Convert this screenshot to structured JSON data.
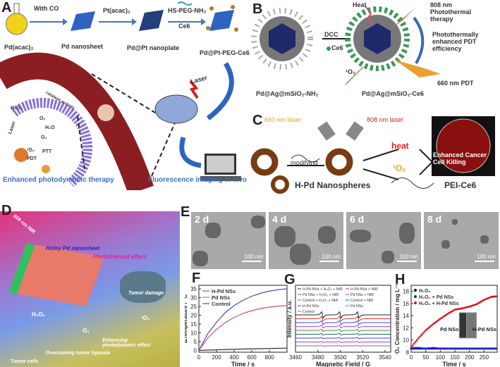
{
  "panels": {
    "A": "A",
    "B": "B",
    "C": "C",
    "D": "D",
    "E": "E",
    "F": "F",
    "G": "G",
    "H": "H"
  },
  "panel_a": {
    "steps": [
      "With CO",
      "Pt(acac)₂",
      "HS-PEG-NH₂",
      "Ce6"
    ],
    "species": [
      "Pd(acac)₂",
      "Pd nanosheet",
      "Pd@Pt nanoplate",
      "Pd@Pt-PEG-Ce6"
    ],
    "laser": "Laser",
    "cell_labels": [
      "Laser",
      "H₂O₂",
      "O₂",
      "O₂",
      "H₂O",
      "¹O₂",
      "PDT",
      "PTT",
      "catalase activity"
    ],
    "caption_left": "Enhanced photodynamic therapy",
    "caption_right": "Fluorescence imaging in vivo",
    "colors": {
      "caption": "#3b6fc2",
      "arrow": "#4a74b8",
      "vessel": "#8b1e22"
    }
  },
  "panel_b": {
    "reagent": "DCC",
    "ce6": "Ce6",
    "left_label": "Pd@Ag@mSiO₂-NH₂",
    "right_label": "Pd@Ag@mSiO₂-Ce6",
    "heat": "Heat",
    "laser808": "808 nm Photothermal therapy",
    "enhanced": "Photothermally enhanced PDT efficiency",
    "singlet": "¹O₂",
    "laser660": "660 nm PDT"
  },
  "panel_c": {
    "laser660": "660 nm laser",
    "laser808": "808 nm laser",
    "modifying": "modifying",
    "heat": "heat",
    "singlet": "¹O₂",
    "result": "Enhanced Cancer Cell Killing",
    "legend_sphere": "H-Pd Nanospheres",
    "legend_polymer": "PEI-Ce6",
    "colors": {
      "laser660": "#e8a21c",
      "laser808": "#e0201c",
      "sphere": "#7a3b12"
    }
  },
  "panel_d": {
    "nir": "808 nm NIR",
    "sheet": "Holey Pd nanosheet",
    "photothermal": "Photothermal effect",
    "damage": "Tumor damage",
    "h2o2": "H₂O₂",
    "o2": "O₂",
    "singlet": "¹O₂",
    "enhancing": "Enhancing photodynamic effect",
    "hypoxia": "Overcoming tumor hypoxia",
    "cells": "Tumor cells"
  },
  "panel_e": {
    "images": [
      {
        "day": "2 d",
        "scale": "100 nm"
      },
      {
        "day": "4 d",
        "scale": "100 nm"
      },
      {
        "day": "6 d",
        "scale": "100 nm"
      },
      {
        "day": "8 d",
        "scale": "100 nm"
      }
    ]
  },
  "chart_data": [
    {
      "panel": "F",
      "type": "line",
      "xlabel": "Time / s",
      "ylabel": "ΔTemperature / °C",
      "xlim": [
        0,
        1000
      ],
      "ylim": [
        -1,
        37
      ],
      "xticks": [
        0,
        200,
        400,
        600,
        800
      ],
      "yticks": [
        0,
        5,
        10,
        15,
        20,
        25,
        30,
        35
      ],
      "legend": "top-left",
      "x": [
        0,
        100,
        200,
        300,
        400,
        500,
        600,
        700,
        800,
        900,
        1000
      ],
      "series": [
        {
          "name": "H-Pd NSs",
          "color": "#4a4ac8",
          "values": [
            0,
            9.5,
            16,
            21.5,
            25.5,
            28.5,
            30.8,
            32.5,
            33.7,
            34.5,
            35
          ]
        },
        {
          "name": "Pd NSs",
          "color": "#d0506a",
          "values": [
            0,
            7,
            12,
            15.8,
            18.8,
            21,
            22.6,
            23.8,
            24.6,
            25.2,
            25.5
          ]
        },
        {
          "name": "Control",
          "color": "#333333",
          "values": [
            0,
            0.2,
            0.35,
            0.5,
            0.65,
            0.8,
            0.9,
            1.0,
            1.1,
            1.2,
            1.3
          ]
        }
      ]
    },
    {
      "panel": "G",
      "type": "line",
      "xlabel": "Magnetic Field / G",
      "ylabel": "Intensity / a.u.",
      "xlim": [
        3460,
        3545
      ],
      "xticks": [
        3460,
        3480,
        3500,
        3520,
        3540
      ],
      "legend": "top",
      "peaks": [
        3484,
        3500,
        3516
      ],
      "series": [
        {
          "name": "H-Pd NSs + H₂O₂ + NIR",
          "color": "#222222",
          "amplitude": 1.0
        },
        {
          "name": "H-Pd NSs + NIR",
          "color": "#e03030",
          "amplitude": 0.7
        },
        {
          "name": "Pd NSs + H₂O₂ + NIR",
          "color": "#3050d0",
          "amplitude": 0.6
        },
        {
          "name": "Pd NSs + NIR",
          "color": "#d040d0",
          "amplitude": 0.45
        },
        {
          "name": "Control + H₂O₂ + NIR",
          "color": "#30a030",
          "amplitude": 0.35
        },
        {
          "name": "Control + NIR",
          "color": "#306060",
          "amplitude": 0.25
        },
        {
          "name": "H-Pd NSs",
          "color": "#4040e0",
          "amplitude": 0.2
        },
        {
          "name": "Pd NSs",
          "color": "#b040c0",
          "amplitude": 0.18
        },
        {
          "name": "Control",
          "color": "#777777",
          "amplitude": 0.15
        }
      ]
    },
    {
      "panel": "H",
      "type": "scatter",
      "xlabel": "Time / s",
      "ylabel": "O₂ Concentration / mg L⁻¹",
      "xlim": [
        0,
        295
      ],
      "ylim": [
        8,
        19
      ],
      "xticks": [
        0,
        50,
        100,
        150,
        200,
        250
      ],
      "yticks": [
        8,
        10,
        12,
        14,
        16,
        18
      ],
      "legend": "top-left",
      "x": [
        0,
        25,
        50,
        75,
        100,
        125,
        150,
        175,
        200,
        225,
        250,
        275,
        295
      ],
      "series": [
        {
          "name": "H₂O₂",
          "color": "#111111",
          "values": [
            8.6,
            8.6,
            8.6,
            8.6,
            8.6,
            8.6,
            8.6,
            8.6,
            8.6,
            8.6,
            8.6,
            8.6,
            8.6
          ]
        },
        {
          "name": "H₂O₂ + Pd NSs",
          "color": "#2020d0",
          "values": [
            8.7,
            8.7,
            8.6,
            8.7,
            8.6,
            8.6,
            8.6,
            8.6,
            8.6,
            8.6,
            8.6,
            8.6,
            8.6
          ]
        },
        {
          "name": "H₂O₂ + H-Pd NSs",
          "color": "#e01010",
          "values": [
            8.8,
            10.3,
            11.6,
            12.6,
            13.5,
            14.3,
            15.0,
            15.2,
            15.5,
            15.9,
            16.6,
            17.1,
            17.2
          ]
        }
      ],
      "inset_labels": [
        "Pd NSs",
        "H-Pd NSs"
      ]
    }
  ]
}
